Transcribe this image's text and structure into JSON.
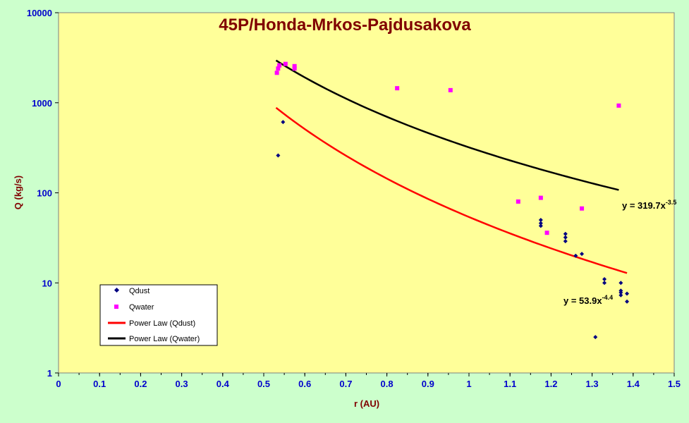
{
  "chart_data": {
    "type": "scatter",
    "title": "45P/Honda-Mrkos-Pajdusakova",
    "xlabel": "r (AU)",
    "ylabel": "Q (kg/s)",
    "xlim": [
      0,
      1.5
    ],
    "ylim": [
      1,
      10000
    ],
    "yscale": "log",
    "x_ticks": [
      "0",
      "0.1",
      "0.2",
      "0.3",
      "0.4",
      "0.5",
      "0.6",
      "0.7",
      "0.8",
      "0.9",
      "1",
      "1.1",
      "1.2",
      "1.3",
      "1.4",
      "1.5"
    ],
    "y_ticks": [
      "1",
      "10",
      "100",
      "1000",
      "10000"
    ],
    "grid": false,
    "legend_position": "bottom-left",
    "colors": {
      "plot_background": "#ffff99",
      "frame_background": "#ccffcc",
      "qdust": "#000080",
      "qwater": "#ff00ff",
      "fit_dust": "#ff0000",
      "fit_water": "#000000"
    },
    "series": [
      {
        "name": "Qdust",
        "marker": "diamond",
        "points": [
          [
            0.535,
            260
          ],
          [
            0.547,
            610
          ],
          [
            1.175,
            50
          ],
          [
            1.175,
            46
          ],
          [
            1.175,
            43
          ],
          [
            1.235,
            35
          ],
          [
            1.235,
            32
          ],
          [
            1.235,
            29
          ],
          [
            1.26,
            20
          ],
          [
            1.275,
            21
          ],
          [
            1.308,
            2.5
          ],
          [
            1.33,
            11
          ],
          [
            1.33,
            10
          ],
          [
            1.37,
            10
          ],
          [
            1.37,
            8.2
          ],
          [
            1.37,
            7.8
          ],
          [
            1.37,
            7.3
          ],
          [
            1.385,
            7.6
          ],
          [
            1.385,
            6.2
          ]
        ]
      },
      {
        "name": "Qwater",
        "marker": "square",
        "points": [
          [
            0.532,
            2150
          ],
          [
            0.535,
            2400
          ],
          [
            0.538,
            2600
          ],
          [
            0.553,
            2700
          ],
          [
            0.575,
            2550
          ],
          [
            0.575,
            2400
          ],
          [
            0.825,
            1450
          ],
          [
            0.955,
            1380
          ],
          [
            1.12,
            80
          ],
          [
            1.175,
            88
          ],
          [
            1.19,
            36
          ],
          [
            1.275,
            67
          ],
          [
            1.365,
            930
          ]
        ]
      },
      {
        "name": "Power Law (Qdust)",
        "type": "power_fit",
        "a": 53.9,
        "b": -4.4,
        "x_range": [
          0.53,
          1.385
        ]
      },
      {
        "name": "Power Law (Qwater)",
        "type": "power_fit",
        "a": 319.7,
        "b": -3.5,
        "x_range": [
          0.53,
          1.365
        ]
      }
    ],
    "annotations": {
      "water_fit_label": {
        "base": "y = 319.7x",
        "exponent": "-3.5"
      },
      "dust_fit_label": {
        "base": "y = 53.9x",
        "exponent": "-4.4"
      }
    }
  }
}
